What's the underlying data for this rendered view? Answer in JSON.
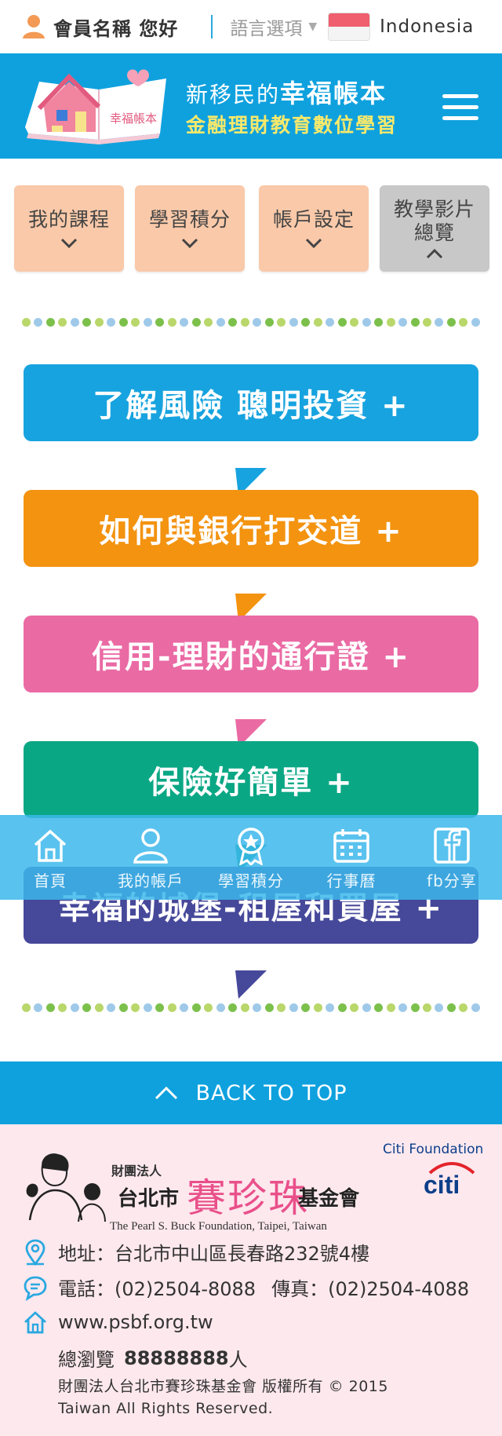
{
  "topbar": {
    "greeting": "會員名稱 您好",
    "language_label": "語言選項",
    "country": "Indonesia"
  },
  "header": {
    "title_small": "新移民的",
    "title_big": "幸福帳本",
    "subtitle": "金融理財教育數位學習",
    "logo_book_text": "幸福帳本"
  },
  "nav": [
    {
      "label": "我的課程"
    },
    {
      "label": "學習積分"
    },
    {
      "label": "帳戶設定"
    },
    {
      "label": "教學影片總覽"
    }
  ],
  "courses": [
    {
      "label": "了解風險 聰明投資 +",
      "color": "#17a3df"
    },
    {
      "label": "如何與銀行打交道 +",
      "color": "#f39310"
    },
    {
      "label": "信用-理財的通行證 +",
      "color": "#ea6aa4"
    },
    {
      "label": "保險好簡單 +",
      "color": "#0aa785"
    },
    {
      "label": "幸福的城堡-租屋和買屋 +",
      "color": "#46489a"
    }
  ],
  "dot_colors": [
    "#b9d76a",
    "#9fc9e9",
    "#7cc04c"
  ],
  "floatbar": [
    {
      "label": "首頁",
      "icon": "home-icon"
    },
    {
      "label": "我的帳戶",
      "icon": "user-icon"
    },
    {
      "label": "學習積分",
      "icon": "badge-icon"
    },
    {
      "label": "行事曆",
      "icon": "calendar-icon"
    },
    {
      "label": "fb分享",
      "icon": "facebook-icon"
    }
  ],
  "back_to_top": "BACK TO TOP",
  "footer": {
    "org_prefix": "財團法人",
    "org_city": "台北市",
    "org_name_script": "賽珍珠",
    "org_suffix": "基金會",
    "org_english": "The Pearl S. Buck Foundation, Taipei, Taiwan",
    "sponsor": "Citi Foundation",
    "sponsor_logo": "citi",
    "address": "地址：台北市中山區長春路232號4樓",
    "phone": "電話：(02)2504-8088",
    "fax": "傳真：(02)2504-4088",
    "website": "www.psbf.org.tw",
    "views_label": "總瀏覽",
    "views_count": "88888888",
    "views_unit": "人",
    "copyright_line1": "財團法人台北市賽珍珠基金會 版權所有 © 2015",
    "copyright_line2": "Taiwan All Rights Reserved."
  },
  "colors": {
    "brand_blue": "#0fa1de",
    "nav_card": "#f9c9a9",
    "nav_card_active": "#c8c8c8",
    "footer_bg": "#fde8ee"
  }
}
